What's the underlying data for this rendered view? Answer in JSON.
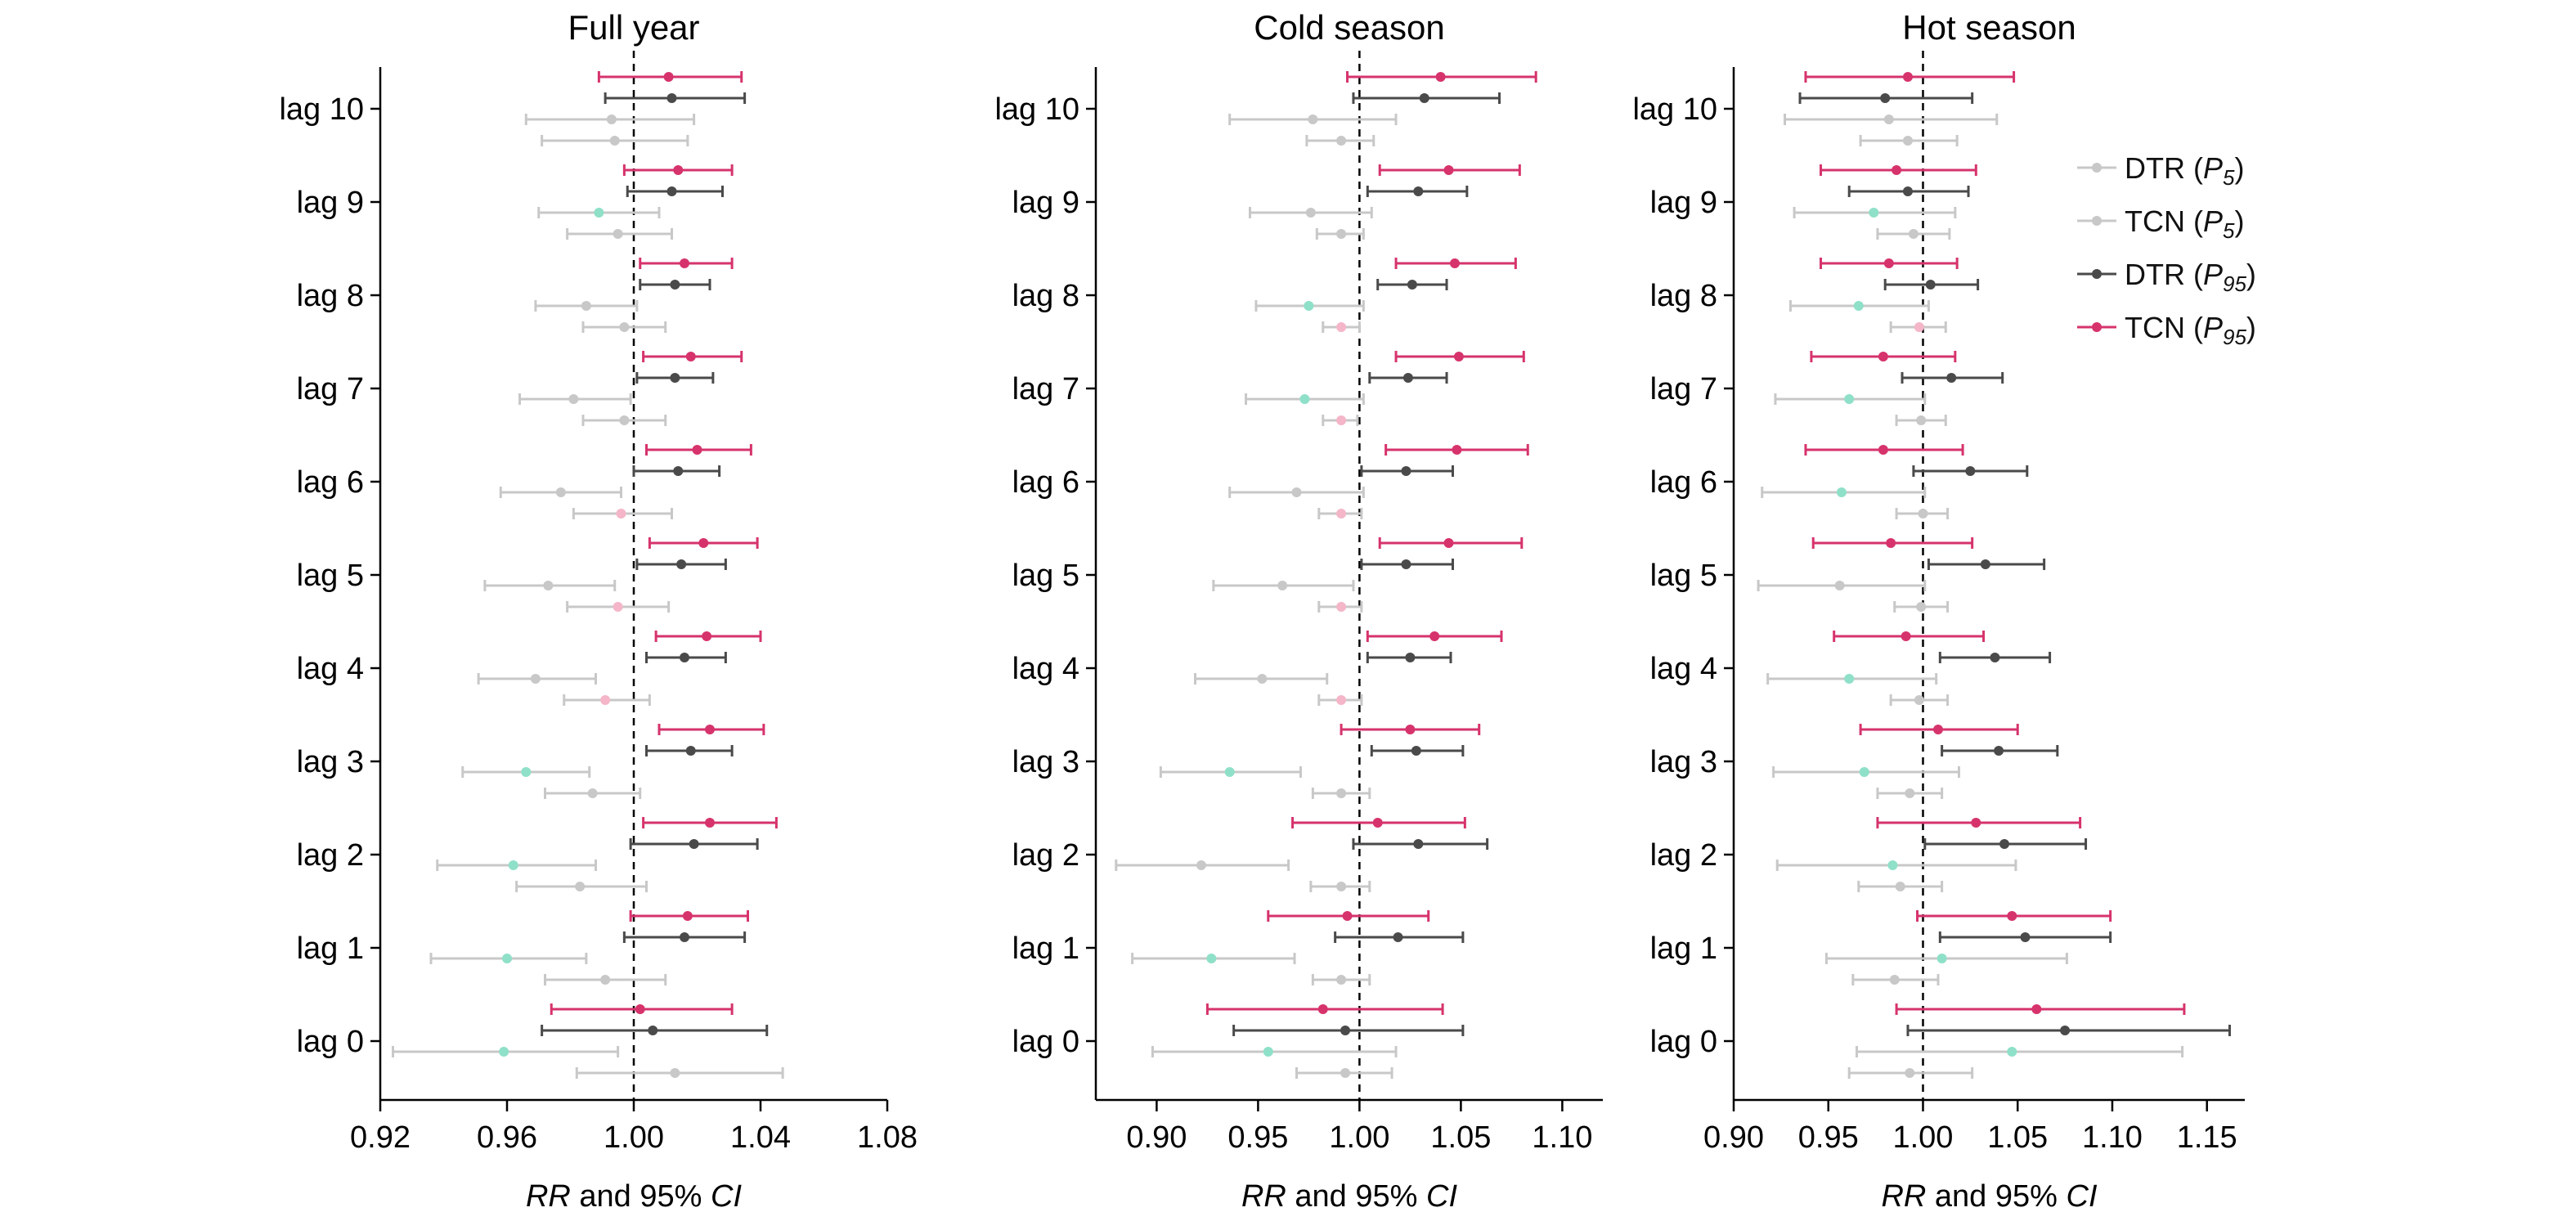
{
  "colors": {
    "DTR_P5": "#c8c8c8",
    "TCN_P5": "#c8c8c8",
    "DTR_P95": "#4a4a4a",
    "TCN_P95": "#d6336c",
    "highlight_cool": "#8fe0c8",
    "highlight_warm": "#f4b6c8"
  },
  "chart_data": [
    {
      "type": "forest",
      "title": "Full year",
      "xlabel": "RR and 95% CI",
      "xlim": [
        0.92,
        1.08
      ],
      "xticks": [
        "0.92",
        "0.96",
        "1.00",
        "1.04",
        "1.08"
      ],
      "reference_line": 1.0,
      "categories": [
        "lag 10",
        "lag 9",
        "lag 8",
        "lag 7",
        "lag 6",
        "lag 5",
        "lag 4",
        "lag 3",
        "lag 2",
        "lag 1",
        "lag 0"
      ],
      "series": [
        {
          "name": "TCN (P95)",
          "values": [
            [
              1.011,
              0.989,
              1.034
            ],
            [
              1.014,
              0.997,
              1.031
            ],
            [
              1.016,
              1.002,
              1.031
            ],
            [
              1.018,
              1.003,
              1.034
            ],
            [
              1.02,
              1.004,
              1.037
            ],
            [
              1.022,
              1.005,
              1.039
            ],
            [
              1.023,
              1.007,
              1.04
            ],
            [
              1.024,
              1.008,
              1.041
            ],
            [
              1.024,
              1.003,
              1.045
            ],
            [
              1.017,
              0.999,
              1.036
            ],
            [
              1.002,
              0.974,
              1.031
            ]
          ]
        },
        {
          "name": "DTR (P95)",
          "values": [
            [
              1.012,
              0.991,
              1.035
            ],
            [
              1.012,
              0.998,
              1.028
            ],
            [
              1.013,
              1.002,
              1.024
            ],
            [
              1.013,
              1.001,
              1.025
            ],
            [
              1.014,
              1.0,
              1.027
            ],
            [
              1.015,
              1.001,
              1.029
            ],
            [
              1.016,
              1.004,
              1.029
            ],
            [
              1.018,
              1.004,
              1.031
            ],
            [
              1.019,
              0.999,
              1.039
            ],
            [
              1.016,
              0.997,
              1.035
            ],
            [
              1.006,
              0.971,
              1.042
            ]
          ]
        },
        {
          "name": "DTR (P5)",
          "values": [
            [
              0.993,
              0.966,
              1.019
            ],
            [
              0.989,
              0.97,
              1.008
            ],
            [
              0.985,
              0.969,
              1.001
            ],
            [
              0.981,
              0.964,
              0.999
            ],
            [
              0.977,
              0.958,
              0.996
            ],
            [
              0.973,
              0.953,
              0.994
            ],
            [
              0.969,
              0.951,
              0.988
            ],
            [
              0.966,
              0.946,
              0.986
            ],
            [
              0.962,
              0.938,
              0.988
            ],
            [
              0.96,
              0.936,
              0.985
            ],
            [
              0.959,
              0.924,
              0.995
            ]
          ]
        },
        {
          "name": "TCN (P5)",
          "values": [
            [
              0.994,
              0.971,
              1.017
            ],
            [
              0.995,
              0.979,
              1.012
            ],
            [
              0.997,
              0.984,
              1.01
            ],
            [
              0.997,
              0.984,
              1.01
            ],
            [
              0.996,
              0.981,
              1.012
            ],
            [
              0.995,
              0.979,
              1.011
            ],
            [
              0.991,
              0.978,
              1.005
            ],
            [
              0.987,
              0.972,
              1.002
            ],
            [
              0.983,
              0.963,
              1.004
            ],
            [
              0.991,
              0.972,
              1.01
            ],
            [
              1.013,
              0.982,
              1.047
            ]
          ]
        }
      ],
      "highlight_cool": [
        [
          1,
          "DTR (P5)"
        ],
        [
          7,
          "DTR (P5)"
        ],
        [
          8,
          "DTR (P5)"
        ],
        [
          9,
          "DTR (P5)"
        ],
        [
          10,
          "DTR (P5)"
        ]
      ],
      "highlight_warm": [
        [
          4,
          "TCN (P5)"
        ],
        [
          5,
          "TCN (P5)"
        ],
        [
          6,
          "TCN (P5)"
        ]
      ]
    },
    {
      "type": "forest",
      "title": "Cold season",
      "xlabel": "RR and 95% CI",
      "xlim": [
        0.87,
        1.12
      ],
      "xticks": [
        "0.90",
        "0.95",
        "1.00",
        "1.05",
        "1.10"
      ],
      "reference_line": 1.0,
      "categories": [
        "lag 10",
        "lag 9",
        "lag 8",
        "lag 7",
        "lag 6",
        "lag 5",
        "lag 4",
        "lag 3",
        "lag 2",
        "lag 1",
        "lag 0"
      ],
      "series": [
        {
          "name": "TCN (P95)",
          "values": [
            [
              1.04,
              0.994,
              1.087
            ],
            [
              1.044,
              1.01,
              1.079
            ],
            [
              1.047,
              1.018,
              1.077
            ],
            [
              1.049,
              1.018,
              1.081
            ],
            [
              1.048,
              1.013,
              1.083
            ],
            [
              1.044,
              1.01,
              1.08
            ],
            [
              1.037,
              1.004,
              1.07
            ],
            [
              1.025,
              0.991,
              1.059
            ],
            [
              1.009,
              0.967,
              1.052
            ],
            [
              0.994,
              0.955,
              1.034
            ],
            [
              0.982,
              0.925,
              1.041
            ]
          ]
        },
        {
          "name": "DTR (P95)",
          "values": [
            [
              1.032,
              0.997,
              1.069
            ],
            [
              1.029,
              1.004,
              1.053
            ],
            [
              1.026,
              1.009,
              1.043
            ],
            [
              1.024,
              1.005,
              1.043
            ],
            [
              1.023,
              1.001,
              1.046
            ],
            [
              1.023,
              1.001,
              1.046
            ],
            [
              1.025,
              1.004,
              1.045
            ],
            [
              1.028,
              1.006,
              1.051
            ],
            [
              1.029,
              0.997,
              1.063
            ],
            [
              1.019,
              0.988,
              1.051
            ],
            [
              0.993,
              0.938,
              1.051
            ]
          ]
        },
        {
          "name": "DTR (P5)",
          "values": [
            [
              0.977,
              0.936,
              1.018
            ],
            [
              0.976,
              0.946,
              1.006
            ],
            [
              0.975,
              0.949,
              1.002
            ],
            [
              0.973,
              0.944,
              1.002
            ],
            [
              0.969,
              0.936,
              1.002
            ],
            [
              0.962,
              0.928,
              0.997
            ],
            [
              0.952,
              0.919,
              0.984
            ],
            [
              0.936,
              0.902,
              0.971
            ],
            [
              0.922,
              0.88,
              0.965
            ],
            [
              0.927,
              0.888,
              0.968
            ],
            [
              0.955,
              0.898,
              1.018
            ]
          ]
        },
        {
          "name": "TCN (P5)",
          "values": [
            [
              0.991,
              0.974,
              1.007
            ],
            [
              0.991,
              0.979,
              1.002
            ],
            [
              0.991,
              0.982,
              1.0
            ],
            [
              0.991,
              0.982,
              0.999
            ],
            [
              0.991,
              0.98,
              1.001
            ],
            [
              0.991,
              0.98,
              1.001
            ],
            [
              0.991,
              0.98,
              1.001
            ],
            [
              0.991,
              0.977,
              1.005
            ],
            [
              0.991,
              0.976,
              1.005
            ],
            [
              0.991,
              0.977,
              1.005
            ],
            [
              0.993,
              0.969,
              1.016
            ]
          ]
        }
      ],
      "highlight_cool": [
        [
          2,
          "DTR (P5)"
        ],
        [
          3,
          "DTR (P5)"
        ],
        [
          7,
          "DTR (P5)"
        ],
        [
          9,
          "DTR (P5)"
        ],
        [
          10,
          "DTR (P5)"
        ]
      ],
      "highlight_warm": [
        [
          2,
          "TCN (P5)"
        ],
        [
          3,
          "TCN (P5)"
        ],
        [
          4,
          "TCN (P5)"
        ],
        [
          5,
          "TCN (P5)"
        ],
        [
          6,
          "TCN (P5)"
        ]
      ]
    },
    {
      "type": "forest",
      "title": "Hot season",
      "xlabel": "RR and 95% CI",
      "xlim": [
        0.9,
        1.17
      ],
      "xticks": [
        "0.90",
        "0.95",
        "1.00",
        "1.05",
        "1.10",
        "1.15"
      ],
      "reference_line": 1.0,
      "categories": [
        "lag 10",
        "lag 9",
        "lag 8",
        "lag 7",
        "lag 6",
        "lag 5",
        "lag 4",
        "lag 3",
        "lag 2",
        "lag 1",
        "lag 0"
      ],
      "series": [
        {
          "name": "TCN (P95)",
          "values": [
            [
              0.992,
              0.938,
              1.048
            ],
            [
              0.986,
              0.946,
              1.028
            ],
            [
              0.982,
              0.946,
              1.018
            ],
            [
              0.979,
              0.941,
              1.017
            ],
            [
              0.979,
              0.938,
              1.021
            ],
            [
              0.983,
              0.942,
              1.026
            ],
            [
              0.991,
              0.953,
              1.032
            ],
            [
              1.008,
              0.967,
              1.05
            ],
            [
              1.028,
              0.976,
              1.083
            ],
            [
              1.047,
              0.997,
              1.099
            ],
            [
              1.06,
              0.986,
              1.138
            ]
          ]
        },
        {
          "name": "DTR (P95)",
          "values": [
            [
              0.98,
              0.935,
              1.026
            ],
            [
              0.992,
              0.961,
              1.024
            ],
            [
              1.004,
              0.98,
              1.029
            ],
            [
              1.015,
              0.989,
              1.042
            ],
            [
              1.025,
              0.995,
              1.055
            ],
            [
              1.033,
              1.003,
              1.064
            ],
            [
              1.038,
              1.009,
              1.067
            ],
            [
              1.04,
              1.01,
              1.071
            ],
            [
              1.043,
              1.001,
              1.086
            ],
            [
              1.054,
              1.009,
              1.099
            ],
            [
              1.075,
              0.992,
              1.162
            ]
          ]
        },
        {
          "name": "DTR (P5)",
          "values": [
            [
              0.982,
              0.927,
              1.039
            ],
            [
              0.974,
              0.932,
              1.017
            ],
            [
              0.966,
              0.93,
              1.003
            ],
            [
              0.961,
              0.922,
              1.001
            ],
            [
              0.957,
              0.915,
              1.001
            ],
            [
              0.956,
              0.913,
              1.001
            ],
            [
              0.961,
              0.918,
              1.007
            ],
            [
              0.969,
              0.921,
              1.019
            ],
            [
              0.984,
              0.923,
              1.049
            ],
            [
              1.01,
              0.949,
              1.076
            ],
            [
              1.047,
              0.965,
              1.137
            ]
          ]
        },
        {
          "name": "TCN (P5)",
          "values": [
            [
              0.992,
              0.967,
              1.018
            ],
            [
              0.995,
              0.976,
              1.014
            ],
            [
              0.998,
              0.983,
              1.012
            ],
            [
              0.999,
              0.986,
              1.012
            ],
            [
              1.0,
              0.986,
              1.013
            ],
            [
              0.999,
              0.985,
              1.013
            ],
            [
              0.998,
              0.983,
              1.013
            ],
            [
              0.993,
              0.976,
              1.01
            ],
            [
              0.988,
              0.966,
              1.01
            ],
            [
              0.985,
              0.963,
              1.008
            ],
            [
              0.993,
              0.961,
              1.026
            ]
          ]
        }
      ],
      "highlight_cool": [
        [
          1,
          "DTR (P5)"
        ],
        [
          2,
          "DTR (P5)"
        ],
        [
          3,
          "DTR (P5)"
        ],
        [
          4,
          "DTR (P5)"
        ],
        [
          6,
          "DTR (P5)"
        ],
        [
          7,
          "DTR (P5)"
        ],
        [
          8,
          "DTR (P5)"
        ],
        [
          9,
          "DTR (P5)"
        ],
        [
          10,
          "DTR (P5)"
        ]
      ],
      "highlight_warm": [
        [
          2,
          "TCN (P5)"
        ]
      ]
    }
  ],
  "legend": {
    "position": "right",
    "items": [
      {
        "series": "DTR (P5)",
        "base": "DTR",
        "sub": "5"
      },
      {
        "series": "TCN (P5)",
        "base": "TCN",
        "sub": "5"
      },
      {
        "series": "DTR (P95)",
        "base": "DTR",
        "sub": "95"
      },
      {
        "series": "TCN (P95)",
        "base": "TCN",
        "sub": "95"
      }
    ]
  }
}
